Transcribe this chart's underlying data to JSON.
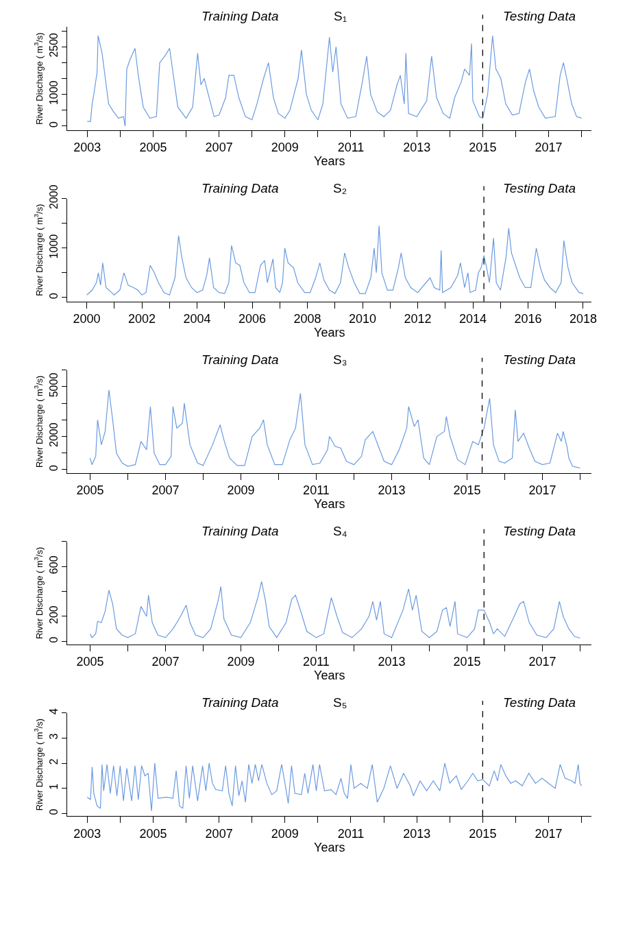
{
  "chart_data": [
    {
      "type": "line",
      "title": null,
      "xlabel": "Years",
      "ylabel": "River Discharge ( m$^{3}$/s)",
      "color": "#6a9ae0",
      "line_style": "solid",
      "annotations": [
        "Training Data",
        "S₁",
        "Testing Data"
      ],
      "xlim": [
        2002.4,
        2018.3
      ],
      "ylim": [
        -120,
        3120
      ],
      "xticks": [
        2003,
        {
          "value": 2004,
          "label": null
        },
        2005,
        {
          "value": 2006,
          "label": null
        },
        2007,
        {
          "value": 2008,
          "label": null
        },
        2009,
        {
          "value": 2010,
          "label": null
        },
        2011,
        {
          "value": 2012,
          "label": null
        },
        2013,
        {
          "value": 2014,
          "label": null
        },
        2015,
        {
          "value": 2016,
          "label": null
        },
        2017,
        {
          "value": 2018,
          "label": null
        }
      ],
      "yticks": [
        0,
        {
          "value": 500,
          "label": null
        },
        1000,
        {
          "value": 1500,
          "label": null
        },
        {
          "value": 2000,
          "label": null
        },
        2500,
        {
          "value": 3000,
          "label": null
        }
      ],
      "ref_lines": [
        {
          "axis": "x",
          "value": 2015.0,
          "color": "#000000",
          "line_style": "dashed"
        }
      ],
      "x": [
        2003.0,
        2003.1,
        2003.15,
        2003.2,
        2003.3,
        2003.33,
        2003.45,
        2003.55,
        2003.65,
        2003.8,
        2003.95,
        2004.1,
        2004.15,
        2004.2,
        2004.3,
        2004.45,
        2004.55,
        2004.7,
        2004.9,
        2005.1,
        2005.2,
        2005.35,
        2005.5,
        2005.6,
        2005.75,
        2006.0,
        2006.2,
        2006.35,
        2006.45,
        2006.55,
        2006.7,
        2006.85,
        2007.0,
        2007.2,
        2007.3,
        2007.45,
        2007.6,
        2007.8,
        2008.0,
        2008.15,
        2008.35,
        2008.5,
        2008.65,
        2008.8,
        2009.0,
        2009.15,
        2009.4,
        2009.5,
        2009.65,
        2009.8,
        2010.0,
        2010.15,
        2010.35,
        2010.45,
        2010.55,
        2010.7,
        2010.9,
        2011.15,
        2011.35,
        2011.48,
        2011.6,
        2011.8,
        2012.0,
        2012.2,
        2012.4,
        2012.5,
        2012.62,
        2012.67,
        2012.75,
        2013.0,
        2013.3,
        2013.45,
        2013.6,
        2013.8,
        2014.0,
        2014.15,
        2014.35,
        2014.45,
        2014.6,
        2014.66,
        2014.7,
        2014.9,
        2015.0,
        2015.15,
        2015.3,
        2015.4,
        2015.55,
        2015.7,
        2015.9,
        2016.1,
        2016.3,
        2016.42,
        2016.55,
        2016.7,
        2016.9,
        2017.2,
        2017.35,
        2017.45,
        2017.55,
        2017.7,
        2017.85,
        2018.0
      ],
      "values": [
        150,
        150,
        700,
        1000,
        1700,
        2850,
        2300,
        1500,
        700,
        450,
        250,
        300,
        0,
        1800,
        2100,
        2450,
        1600,
        600,
        250,
        300,
        2000,
        2200,
        2450,
        1700,
        600,
        250,
        600,
        2300,
        1300,
        1500,
        900,
        300,
        350,
        900,
        1600,
        1600,
        900,
        300,
        200,
        700,
        1500,
        2000,
        900,
        400,
        250,
        500,
        1500,
        2400,
        1000,
        500,
        200,
        700,
        2800,
        1700,
        2500,
        700,
        250,
        300,
        1400,
        2200,
        1000,
        450,
        300,
        500,
        1300,
        1600,
        700,
        2300,
        400,
        300,
        800,
        2200,
        900,
        400,
        250,
        900,
        1400,
        1800,
        1600,
        2600,
        800,
        300,
        250,
        1000,
        2850,
        1800,
        1500,
        700,
        350,
        400,
        1400,
        1800,
        1100,
        600,
        250,
        300,
        1600,
        2000,
        1500,
        700,
        300,
        250
      ]
    },
    {
      "type": "line",
      "title": null,
      "xlabel": "Years",
      "ylabel": "River Discharge ( m$^{3}$/s)",
      "color": "#6a9ae0",
      "line_style": "solid",
      "annotations": [
        "Training Data",
        "S₂",
        "Testing Data"
      ],
      "xlim": [
        1999.3,
        2018.3
      ],
      "ylim": [
        -80,
        2000
      ],
      "xticks": [
        2000,
        {
          "value": 2001,
          "label": null
        },
        2002,
        {
          "value": 2003,
          "label": null
        },
        2004,
        {
          "value": 2005,
          "label": null
        },
        2006,
        {
          "value": 2007,
          "label": null
        },
        2008,
        {
          "value": 2009,
          "label": null
        },
        2010,
        {
          "value": 2011,
          "label": null
        },
        2012,
        {
          "value": 2013,
          "label": null
        },
        2014,
        {
          "value": 2015,
          "label": null
        },
        2016,
        {
          "value": 2017,
          "label": null
        },
        2018
      ],
      "yticks": [
        0,
        {
          "value": 500,
          "label": null
        },
        1000,
        {
          "value": 1500,
          "label": null
        },
        2000
      ],
      "ref_lines": [
        {
          "axis": "x",
          "value": 2014.4,
          "color": "#000000",
          "line_style": "dashed"
        }
      ],
      "x": [
        2000.0,
        2000.2,
        2000.35,
        2000.42,
        2000.5,
        2000.58,
        2000.7,
        2001.0,
        2001.2,
        2001.35,
        2001.5,
        2001.7,
        2001.85,
        2002.0,
        2002.15,
        2002.3,
        2002.45,
        2002.6,
        2002.8,
        2003.0,
        2003.2,
        2003.33,
        2003.45,
        2003.6,
        2003.8,
        2004.0,
        2004.2,
        2004.35,
        2004.45,
        2004.6,
        2004.8,
        2005.0,
        2005.15,
        2005.25,
        2005.4,
        2005.55,
        2005.7,
        2005.9,
        2006.1,
        2006.3,
        2006.45,
        2006.55,
        2006.75,
        2006.85,
        2007.0,
        2007.1,
        2007.18,
        2007.3,
        2007.5,
        2007.65,
        2007.9,
        2008.1,
        2008.3,
        2008.45,
        2008.6,
        2008.8,
        2009.0,
        2009.2,
        2009.35,
        2009.5,
        2009.7,
        2009.9,
        2010.1,
        2010.3,
        2010.42,
        2010.5,
        2010.6,
        2010.7,
        2010.9,
        2011.1,
        2011.3,
        2011.4,
        2011.55,
        2011.75,
        2012.0,
        2012.3,
        2012.45,
        2012.6,
        2012.8,
        2012.85,
        2012.9,
        2013.2,
        2013.45,
        2013.55,
        2013.7,
        2013.82,
        2013.9,
        2014.1,
        2014.2,
        2014.3,
        2014.4,
        2014.5,
        2014.6,
        2014.75,
        2014.85,
        2015.0,
        2015.2,
        2015.3,
        2015.4,
        2015.55,
        2015.7,
        2015.9,
        2016.1,
        2016.3,
        2016.45,
        2016.6,
        2016.8,
        2017.0,
        2017.2,
        2017.3,
        2017.45,
        2017.6,
        2017.85,
        2018.0
      ],
      "values": [
        50,
        150,
        300,
        500,
        250,
        700,
        200,
        50,
        150,
        500,
        250,
        200,
        150,
        50,
        100,
        650,
        500,
        300,
        100,
        50,
        400,
        1250,
        800,
        400,
        200,
        100,
        150,
        450,
        800,
        200,
        100,
        80,
        300,
        1050,
        700,
        650,
        300,
        100,
        100,
        650,
        750,
        300,
        780,
        200,
        100,
        300,
        1000,
        700,
        600,
        300,
        100,
        100,
        400,
        700,
        350,
        150,
        80,
        300,
        900,
        600,
        300,
        80,
        80,
        400,
        1000,
        500,
        1450,
        500,
        150,
        150,
        600,
        900,
        400,
        200,
        100,
        300,
        400,
        200,
        150,
        950,
        100,
        200,
        450,
        700,
        200,
        500,
        100,
        150,
        500,
        600,
        850,
        600,
        300,
        1200,
        300,
        150,
        800,
        1400,
        900,
        650,
        400,
        200,
        200,
        1000,
        600,
        350,
        200,
        100,
        300,
        1150,
        600,
        300,
        100,
        80
      ]
    },
    {
      "type": "line",
      "title": null,
      "xlabel": "Years",
      "ylabel": "River Discharge ( m$^{3}$/s)",
      "color": "#6a9ae0",
      "line_style": "solid",
      "annotations": [
        "Training Data",
        "S₃",
        "Testing Data"
      ],
      "xlim": [
        2004.4,
        2018.3
      ],
      "ylim": [
        -200,
        6000
      ],
      "xticks": [
        2005,
        {
          "value": 2006,
          "label": null
        },
        2007,
        {
          "value": 2008,
          "label": null
        },
        2009,
        {
          "value": 2010,
          "label": null
        },
        2011,
        {
          "value": 2012,
          "label": null
        },
        2013,
        {
          "value": 2014,
          "label": null
        },
        2015,
        {
          "value": 2016,
          "label": null
        },
        2017,
        {
          "value": 2018,
          "label": null
        }
      ],
      "yticks": [
        0,
        {
          "value": 1000,
          "label": null
        },
        2000,
        {
          "value": 3000,
          "label": null
        },
        {
          "value": 4000,
          "label": null
        },
        5000,
        {
          "value": 6000,
          "label": null
        }
      ],
      "ref_lines": [
        {
          "axis": "x",
          "value": 2015.4,
          "color": "#000000",
          "line_style": "dashed"
        }
      ],
      "x": [
        2005.0,
        2005.05,
        2005.15,
        2005.2,
        2005.3,
        2005.4,
        2005.5,
        2005.6,
        2005.7,
        2005.85,
        2006.0,
        2006.2,
        2006.35,
        2006.5,
        2006.6,
        2006.7,
        2006.85,
        2007.0,
        2007.15,
        2007.2,
        2007.3,
        2007.45,
        2007.5,
        2007.65,
        2007.85,
        2008.0,
        2008.25,
        2008.45,
        2008.55,
        2008.7,
        2008.9,
        2009.1,
        2009.3,
        2009.5,
        2009.6,
        2009.7,
        2009.9,
        2010.1,
        2010.3,
        2010.45,
        2010.58,
        2010.7,
        2010.9,
        2011.1,
        2011.3,
        2011.35,
        2011.5,
        2011.65,
        2011.8,
        2012.0,
        2012.2,
        2012.3,
        2012.5,
        2012.65,
        2012.8,
        2013.0,
        2013.2,
        2013.4,
        2013.45,
        2013.6,
        2013.7,
        2013.85,
        2014.0,
        2014.2,
        2014.4,
        2014.45,
        2014.55,
        2014.75,
        2014.95,
        2015.15,
        2015.3,
        2015.45,
        2015.6,
        2015.7,
        2015.85,
        2016.0,
        2016.2,
        2016.28,
        2016.35,
        2016.5,
        2016.65,
        2016.8,
        2017.0,
        2017.2,
        2017.4,
        2017.5,
        2017.55,
        2017.65,
        2017.7,
        2017.8,
        2017.9,
        2018.0
      ],
      "values": [
        700,
        300,
        800,
        3000,
        1500,
        2300,
        4800,
        3000,
        1000,
        400,
        200,
        300,
        1700,
        1200,
        3800,
        1000,
        300,
        300,
        800,
        3800,
        2500,
        2800,
        4000,
        1500,
        400,
        250,
        1500,
        2700,
        1800,
        700,
        250,
        250,
        2000,
        2500,
        3000,
        1500,
        300,
        300,
        1800,
        2500,
        4600,
        1500,
        300,
        400,
        1200,
        2000,
        1400,
        1300,
        500,
        300,
        800,
        1800,
        2300,
        1400,
        500,
        300,
        1200,
        2500,
        3800,
        2600,
        3000,
        700,
        300,
        2000,
        2300,
        3200,
        2000,
        600,
        300,
        1700,
        1500,
        2500,
        4300,
        1500,
        500,
        400,
        700,
        3600,
        1700,
        2200,
        1300,
        500,
        300,
        400,
        2200,
        1700,
        2300,
        1400,
        700,
        200,
        150,
        100
      ]
    },
    {
      "type": "line",
      "title": null,
      "xlabel": "Years",
      "ylabel": "River Discharge ( m$^{3}$/s)",
      "color": "#6a9ae0",
      "line_style": "solid",
      "annotations": [
        "Training Data",
        "S₄",
        "Testing Data"
      ],
      "xlim": [
        2004.4,
        2018.3
      ],
      "ylim": [
        -25,
        800
      ],
      "xticks": [
        2005,
        {
          "value": 2006,
          "label": null
        },
        2007,
        {
          "value": 2008,
          "label": null
        },
        2009,
        {
          "value": 2010,
          "label": null
        },
        2011,
        {
          "value": 2012,
          "label": null
        },
        2013,
        {
          "value": 2014,
          "label": null
        },
        2015,
        {
          "value": 2016,
          "label": null
        },
        2017,
        {
          "value": 2018,
          "label": null
        }
      ],
      "yticks": [
        0,
        200,
        {
          "value": 400,
          "label": null
        },
        600,
        {
          "value": 800,
          "label": null
        }
      ],
      "ref_lines": [
        {
          "axis": "x",
          "value": 2015.45,
          "color": "#000000",
          "line_style": "dashed"
        }
      ],
      "x": [
        2005.0,
        2005.05,
        2005.15,
        2005.2,
        2005.3,
        2005.4,
        2005.5,
        2005.6,
        2005.7,
        2005.85,
        2006.0,
        2006.2,
        2006.35,
        2006.5,
        2006.55,
        2006.65,
        2006.8,
        2007.0,
        2007.2,
        2007.4,
        2007.55,
        2007.65,
        2007.8,
        2008.0,
        2008.2,
        2008.4,
        2008.47,
        2008.55,
        2008.75,
        2009.0,
        2009.25,
        2009.45,
        2009.55,
        2009.65,
        2009.75,
        2009.95,
        2010.2,
        2010.35,
        2010.45,
        2010.6,
        2010.75,
        2011.0,
        2011.2,
        2011.4,
        2011.55,
        2011.7,
        2011.95,
        2012.2,
        2012.4,
        2012.5,
        2012.6,
        2012.7,
        2012.8,
        2013.0,
        2013.3,
        2013.45,
        2013.55,
        2013.65,
        2013.8,
        2014.0,
        2014.2,
        2014.35,
        2014.45,
        2014.55,
        2014.68,
        2014.75,
        2015.0,
        2015.2,
        2015.3,
        2015.45,
        2015.6,
        2015.7,
        2015.8,
        2016.0,
        2016.25,
        2016.4,
        2016.5,
        2016.65,
        2016.85,
        2017.1,
        2017.3,
        2017.45,
        2017.55,
        2017.7,
        2017.85,
        2018.0
      ],
      "values": [
        60,
        30,
        60,
        160,
        150,
        240,
        410,
        300,
        100,
        50,
        30,
        60,
        280,
        200,
        370,
        150,
        50,
        30,
        100,
        200,
        290,
        150,
        50,
        30,
        100,
        330,
        440,
        180,
        50,
        30,
        150,
        350,
        480,
        330,
        120,
        30,
        150,
        340,
        370,
        230,
        80,
        30,
        60,
        350,
        200,
        70,
        30,
        100,
        200,
        320,
        170,
        320,
        60,
        30,
        250,
        420,
        250,
        370,
        80,
        30,
        80,
        250,
        270,
        120,
        320,
        60,
        30,
        100,
        250,
        250,
        150,
        60,
        100,
        40,
        200,
        300,
        320,
        150,
        50,
        30,
        100,
        320,
        200,
        100,
        40,
        25
      ]
    },
    {
      "type": "line",
      "title": null,
      "xlabel": "Years",
      "ylabel": "River Discharge ( m$^{3}$/s)",
      "color": "#6a9ae0",
      "line_style": "solid",
      "annotations": [
        "Training Data",
        "S₅",
        "Testing Data"
      ],
      "xlim": [
        2002.4,
        2018.3
      ],
      "ylim": [
        -0.1,
        4
      ],
      "xticks": [
        2003,
        {
          "value": 2004,
          "label": null
        },
        2005,
        {
          "value": 2006,
          "label": null
        },
        2007,
        {
          "value": 2008,
          "label": null
        },
        2009,
        {
          "value": 2010,
          "label": null
        },
        2011,
        {
          "value": 2012,
          "label": null
        },
        2013,
        {
          "value": 2014,
          "label": null
        },
        2015,
        {
          "value": 2016,
          "label": null
        },
        2017,
        {
          "value": 2018,
          "label": null
        }
      ],
      "yticks": [
        0,
        1,
        2,
        3,
        4
      ],
      "ref_lines": [
        {
          "axis": "x",
          "value": 2015.0,
          "color": "#000000",
          "line_style": "dashed"
        }
      ],
      "x": [
        2003.0,
        2003.1,
        2003.15,
        2003.2,
        2003.3,
        2003.4,
        2003.45,
        2003.5,
        2003.6,
        2003.7,
        2003.8,
        2003.9,
        2004.0,
        2004.1,
        2004.2,
        2004.35,
        2004.45,
        2004.55,
        2004.65,
        2004.75,
        2004.85,
        2004.95,
        2005.05,
        2005.15,
        2005.4,
        2005.6,
        2005.7,
        2005.8,
        2005.9,
        2006.0,
        2006.1,
        2006.2,
        2006.35,
        2006.5,
        2006.6,
        2006.7,
        2006.8,
        2006.9,
        2007.1,
        2007.2,
        2007.3,
        2007.4,
        2007.5,
        2007.6,
        2007.7,
        2007.8,
        2007.9,
        2008.0,
        2008.1,
        2008.2,
        2008.3,
        2008.45,
        2008.6,
        2008.75,
        2008.9,
        2009.0,
        2009.1,
        2009.2,
        2009.3,
        2009.5,
        2009.6,
        2009.7,
        2009.85,
        2009.95,
        2010.05,
        2010.2,
        2010.4,
        2010.55,
        2010.7,
        2010.8,
        2010.9,
        2011.0,
        2011.1,
        2011.3,
        2011.5,
        2011.65,
        2011.8,
        2012.0,
        2012.2,
        2012.4,
        2012.6,
        2012.8,
        2012.9,
        2013.1,
        2013.3,
        2013.5,
        2013.7,
        2013.85,
        2014.0,
        2014.2,
        2014.35,
        2014.55,
        2014.7,
        2014.85,
        2015.0,
        2015.2,
        2015.35,
        2015.45,
        2015.55,
        2015.7,
        2015.85,
        2016.0,
        2016.2,
        2016.4,
        2016.6,
        2016.8,
        2017.0,
        2017.2,
        2017.35,
        2017.5,
        2017.7,
        2017.8,
        2017.9,
        2017.95,
        2018.0
      ],
      "values": [
        0.65,
        0.55,
        1.85,
        0.8,
        0.3,
        0.2,
        1.95,
        0.9,
        1.95,
        0.8,
        1.9,
        0.7,
        1.9,
        0.5,
        1.8,
        0.5,
        1.9,
        0.55,
        1.9,
        1.5,
        1.6,
        0.1,
        2.0,
        0.6,
        0.65,
        0.6,
        1.7,
        0.3,
        0.2,
        1.9,
        0.6,
        1.9,
        0.5,
        1.9,
        0.9,
        2.0,
        1.2,
        0.95,
        0.9,
        1.9,
        0.8,
        0.3,
        1.9,
        0.7,
        1.3,
        0.45,
        1.95,
        1.2,
        1.95,
        1.3,
        1.95,
        1.2,
        0.75,
        0.9,
        1.95,
        1.2,
        0.4,
        1.9,
        0.8,
        0.75,
        1.6,
        0.8,
        1.95,
        0.9,
        1.95,
        0.9,
        0.95,
        0.75,
        1.4,
        0.8,
        0.6,
        1.95,
        1.0,
        1.2,
        1.0,
        1.95,
        0.45,
        1.0,
        1.9,
        1.0,
        1.6,
        1.1,
        0.7,
        1.3,
        0.9,
        1.3,
        0.9,
        2.0,
        1.2,
        1.5,
        0.95,
        1.3,
        1.6,
        1.3,
        1.35,
        1.1,
        1.7,
        1.3,
        1.95,
        1.5,
        1.2,
        1.3,
        1.1,
        1.6,
        1.2,
        1.4,
        1.2,
        1.0,
        1.95,
        1.4,
        1.3,
        1.2,
        1.95,
        1.2,
        1.1
      ]
    }
  ]
}
